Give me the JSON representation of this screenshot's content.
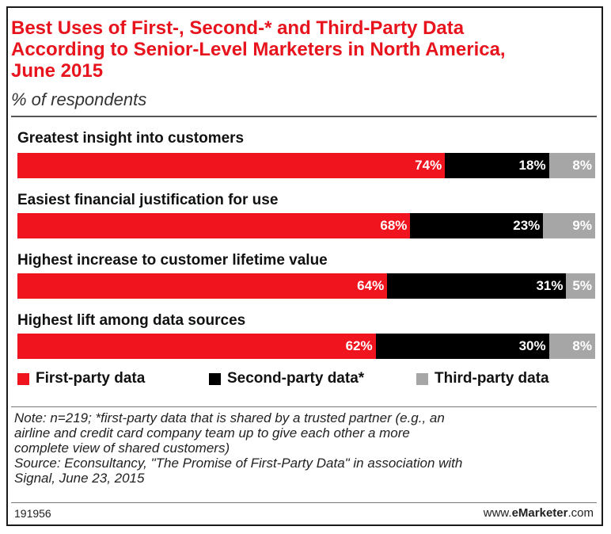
{
  "header": {
    "title_lines": [
      "Best Uses of First-, Second-* and Third-Party Data",
      "According to Senior-Level Marketers in North America,",
      "June 2015"
    ],
    "subtitle": "% of respondents"
  },
  "colors": {
    "title": "#e8141d",
    "first_party": "#f0141e",
    "second_party": "#000000",
    "third_party": "#a6a6a6"
  },
  "chart_data": {
    "type": "bar",
    "stacked": true,
    "orientation": "horizontal",
    "title": "Best Uses of First-, Second-* and Third-Party Data According to Senior-Level Marketers in North America, June 2015",
    "subtitle": "% of respondents",
    "categories": [
      "Greatest insight into customers",
      "Easiest financial justification for use",
      "Highest increase to customer lifetime value",
      "Highest lift among data sources"
    ],
    "series": [
      {
        "name": "First-party data",
        "values": [
          74,
          68,
          64,
          62
        ],
        "labels": [
          "74%",
          "68%",
          "64%",
          "62%"
        ]
      },
      {
        "name": "Second-party data*",
        "values": [
          18,
          23,
          31,
          30
        ],
        "labels": [
          "18%",
          "23%",
          "31%",
          "30%"
        ]
      },
      {
        "name": "Third-party data",
        "values": [
          8,
          9,
          5,
          8
        ],
        "labels": [
          "8%",
          "9%",
          "5%",
          "8%"
        ]
      }
    ],
    "legend": "bottom",
    "grid": false
  },
  "notes": {
    "lines": [
      "Note: n=219; *first-party data that is shared by a trusted partner (e.g., an",
      "airline and credit card company team up to give each other a more",
      "complete view of shared customers)",
      "Source: Econsultancy, \"The Promise of First-Party Data\" in association with",
      "Signal, June 23, 2015"
    ]
  },
  "footer": {
    "id": "191956",
    "brand_prefix": "www.",
    "brand_bold": "eMarketer",
    "brand_suffix": ".com"
  }
}
